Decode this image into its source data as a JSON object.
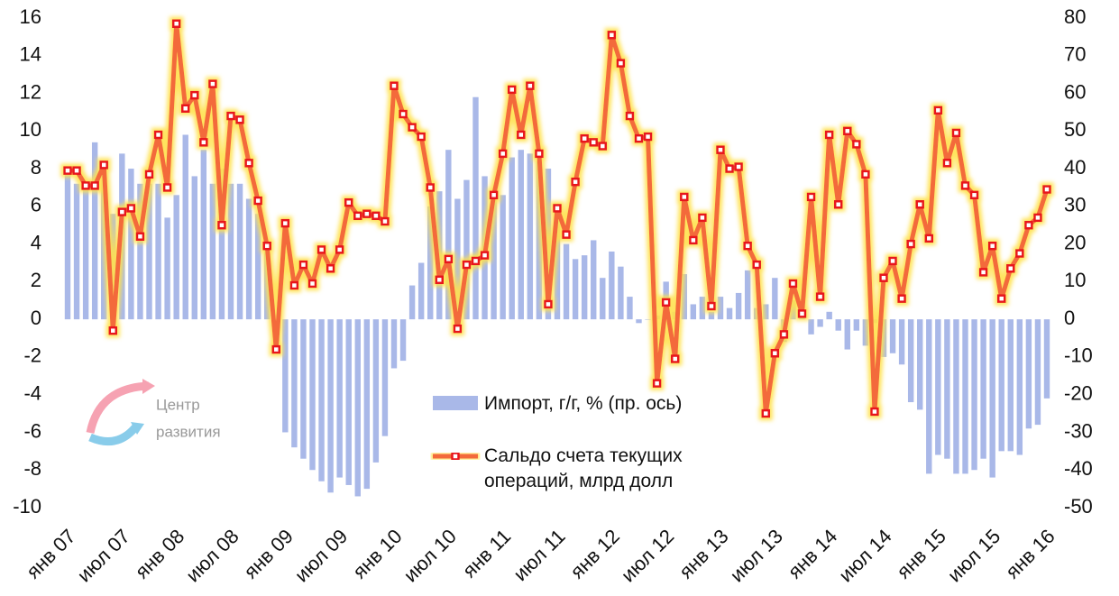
{
  "chart_data": {
    "type": "combo",
    "logo": [
      "Центр",
      "развития"
    ],
    "categories": [
      "янв 07",
      null,
      null,
      null,
      null,
      null,
      "июл 07",
      null,
      null,
      null,
      null,
      null,
      "янв 08",
      null,
      null,
      null,
      null,
      null,
      "июл 08",
      null,
      null,
      null,
      null,
      null,
      "янв 09",
      null,
      null,
      null,
      null,
      null,
      "июл 09",
      null,
      null,
      null,
      null,
      null,
      "янв 10",
      null,
      null,
      null,
      null,
      null,
      "июл 10",
      null,
      null,
      null,
      null,
      null,
      "янв 11",
      null,
      null,
      null,
      null,
      null,
      "июл 11",
      null,
      null,
      null,
      null,
      null,
      "янв 12",
      null,
      null,
      null,
      null,
      null,
      "июл 12",
      null,
      null,
      null,
      null,
      null,
      "янв 13",
      null,
      null,
      null,
      null,
      null,
      "июл 13",
      null,
      null,
      null,
      null,
      null,
      "янв 14",
      null,
      null,
      null,
      null,
      null,
      "июл 14",
      null,
      null,
      null,
      null,
      null,
      "янв 15",
      null,
      null,
      null,
      null,
      null,
      "июл 15",
      null,
      null,
      null,
      null,
      null,
      "янв 16"
    ],
    "series": [
      {
        "name": "Импорт, г/г, % (пр. ось)",
        "type": "bar",
        "axis": "y2",
        "color": "#a9b8e8",
        "values": [
          40,
          36,
          36,
          47,
          40,
          28,
          44,
          40,
          36,
          36,
          36,
          27,
          33,
          49,
          38,
          45,
          36,
          40,
          36,
          36,
          32,
          28,
          20,
          -7,
          -30,
          -34,
          -37,
          -40,
          -43,
          -46,
          -42,
          -44,
          -47,
          -45,
          -38,
          -31,
          -13,
          -11,
          9,
          15,
          30,
          34,
          45,
          32,
          37,
          59,
          38,
          33,
          33,
          43,
          45,
          44,
          42,
          40,
          30,
          20,
          16,
          17,
          21,
          11,
          18,
          14,
          6,
          -1,
          0,
          1,
          10,
          2,
          12,
          4,
          6,
          2,
          6,
          3,
          7,
          13,
          3,
          4,
          11,
          -6,
          5,
          2,
          -4,
          -2,
          2,
          -3,
          -8,
          -3,
          -7,
          -1,
          -10,
          -9,
          -12,
          -22,
          -24,
          -41,
          -36,
          -37,
          -41,
          -41,
          -40,
          -37,
          -42,
          -35,
          -35,
          -36,
          -29,
          -28,
          -21
        ]
      },
      {
        "name": "Сальдо счета текущих операций, млрд долл",
        "type": "line",
        "color": "#f36b3b",
        "values": [
          7.9,
          7.9,
          7.1,
          7.1,
          8.2,
          -0.6,
          5.7,
          5.9,
          4.4,
          7.7,
          9.8,
          7.0,
          15.7,
          11.2,
          11.9,
          9.4,
          12.5,
          5.0,
          10.8,
          10.6,
          8.3,
          6.3,
          3.9,
          -1.6,
          5.1,
          1.8,
          2.9,
          1.9,
          3.7,
          2.7,
          3.7,
          6.2,
          5.5,
          5.6,
          5.5,
          5.2,
          12.4,
          10.9,
          10.2,
          9.7,
          7.0,
          2.1,
          3.2,
          -0.5,
          2.9,
          3.1,
          3.4,
          6.6,
          8.8,
          12.2,
          9.8,
          12.4,
          8.8,
          0.8,
          5.9,
          4.5,
          7.3,
          9.6,
          9.4,
          9.2,
          15.1,
          13.6,
          10.8,
          9.6,
          9.7,
          -3.4,
          0.9,
          -2.1,
          6.5,
          4.2,
          5.4,
          0.7,
          9.0,
          8.0,
          8.1,
          3.9,
          2.9,
          -5.0,
          -1.8,
          -0.8,
          1.9,
          0.3,
          6.5,
          1.2,
          9.8,
          6.1,
          10.0,
          9.3,
          7.7,
          -4.9,
          2.2,
          3.1,
          1.1,
          4.0,
          6.1,
          4.3,
          11.1,
          8.3,
          9.9,
          7.1,
          6.6,
          2.5,
          3.9,
          1.1,
          2.7,
          3.5,
          5.0,
          5.4,
          6.9
        ]
      }
    ],
    "ylim": [
      -10,
      16
    ],
    "yticks": [
      -10,
      -8,
      -6,
      -4,
      -2,
      0,
      2,
      4,
      6,
      8,
      10,
      12,
      14,
      16
    ],
    "y2lim": [
      -50,
      80
    ],
    "y2ticks": [
      -50,
      -40,
      -30,
      -20,
      -10,
      0,
      10,
      20,
      30,
      40,
      50,
      60,
      70,
      80
    ]
  }
}
